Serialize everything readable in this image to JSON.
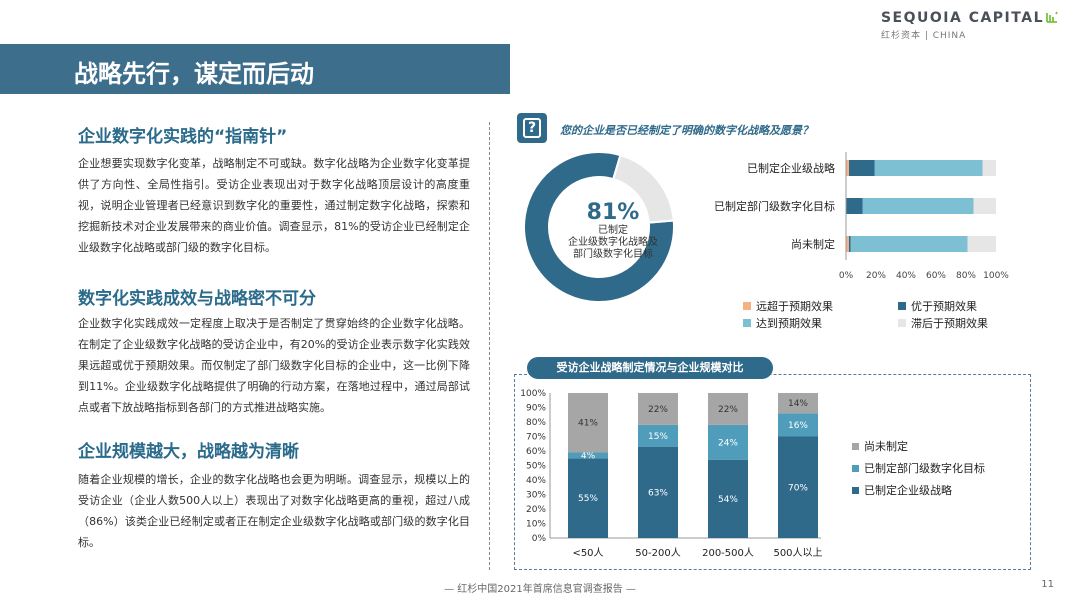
{
  "brand": {
    "name": "SEQUOIA CAPITAL",
    "sub": "红杉资本 | CHINA"
  },
  "page_title": "战略先行，谋定而后动",
  "sections": [
    {
      "heading": "企业数字化实践的“指南针”",
      "body": "企业想要实现数字化变革，战略制定不可或缺。数字化战略为企业数字化变革提供了方向性、全局性指引。受访企业表现出对于数字化战略顶层设计的高度重视，说明企业管理者已经意识到数字化的重要性，通过制定数字化战略，探索和挖掘新技术对企业发展带来的商业价值。调查显示，81%的受访企业已经制定企业级数字化战略或部门级的数字化目标。"
    },
    {
      "heading": "数字化实践成效与战略密不可分",
      "body": "企业数字化实践成效一定程度上取决于是否制定了贯穿始终的企业数字化战略。在制定了企业级数字化战略的受访企业中，有20%的受访企业表示数字化实践效果远超或优于预期效果。而仅制定了部门级数字化目标的企业中，这一比例下降到11%。企业级数字化战略提供了明确的行动方案，在落地过程中，通过局部试点或者下放战略指标到各部门的方式推进战略实施。"
    },
    {
      "heading": "企业规模越大，战略越为清晰",
      "body": "随着企业规模的增长，企业的数字化战略也会更为明晰。调查显示，规模以上的受访企业（企业人数500人以上）表现出了对数字化战略更高的重视，超过八成（86%）该类企业已经制定或者正在制定企业级数字化战略或部门级的数字化目标。"
    }
  ],
  "question": "您的企业是否已经制定了明确的数字化战略及愿景？",
  "donut": {
    "pct": "81%",
    "label_lines": [
      "已制定",
      "企业级数字化战略及",
      "部门级数字化目标"
    ]
  },
  "chart2_title": "受访企业战略制定情况与企业规模对比",
  "footer": "— 红杉中国2021年首席信息官调查报告 —",
  "page": "11",
  "colors": {
    "dark": "#2f6a8a",
    "mid": "#4f9dbb",
    "light": "#7dc0d3",
    "orange": "#f4b183",
    "grey": "#a6a6a6",
    "lightgrey": "#e6e6e6",
    "title_bar": "#3d6e8c"
  },
  "chart_data": [
    {
      "type": "pie",
      "subtype": "donut",
      "categories": [
        "已制定企业级战略或部门级目标",
        "尚未制定"
      ],
      "values": [
        81,
        19
      ],
      "annotation": "81% 已制定 企业级数字化战略及 部门级数字化目标"
    },
    {
      "type": "bar",
      "orientation": "horizontal",
      "stacked": true,
      "categories": [
        "已制定企业级战略",
        "已制定部门级数字化目标",
        "尚未制定"
      ],
      "series": [
        {
          "name": "远超于预期效果",
          "values": [
            2,
            0,
            2
          ],
          "color": "#f4b183"
        },
        {
          "name": "优于预期效果",
          "values": [
            17,
            11,
            1
          ],
          "color": "#2f6a8a"
        },
        {
          "name": "达到预期效果",
          "values": [
            72,
            74,
            78
          ],
          "color": "#7dc0d3"
        },
        {
          "name": "滞后于预期效果",
          "values": [
            9,
            15,
            19
          ],
          "color": "#e6e6e6"
        }
      ],
      "xlim": [
        0,
        100
      ],
      "xticks": [
        "0%",
        "20%",
        "40%",
        "60%",
        "80%",
        "100%"
      ],
      "legend": "bottom",
      "grid": false
    },
    {
      "type": "bar",
      "stacked": true,
      "title": "受访企业战略制定情况与企业规模对比",
      "categories": [
        "<50人",
        "50-200人",
        "200-500人",
        "500人以上"
      ],
      "series": [
        {
          "name": "已制定企业级战略",
          "values": [
            55,
            63,
            54,
            70
          ],
          "labels": [
            "55%",
            "63%",
            "54%",
            "70%"
          ],
          "color": "#2f6a8a"
        },
        {
          "name": "已制定部门级数字化目标",
          "values": [
            4,
            15,
            24,
            16
          ],
          "labels": [
            "4%",
            "15%",
            "24%",
            "16%"
          ],
          "color": "#4f9dbb"
        },
        {
          "name": "尚未制定",
          "values": [
            41,
            22,
            22,
            14
          ],
          "labels": [
            "41%",
            "22%",
            "22%",
            "14%"
          ],
          "color": "#a6a6a6"
        }
      ],
      "ylim": [
        0,
        100
      ],
      "yticks": [
        "0%",
        "10%",
        "20%",
        "30%",
        "40%",
        "50%",
        "60%",
        "70%",
        "80%",
        "90%",
        "100%"
      ],
      "legend": "right",
      "grid": false
    }
  ]
}
